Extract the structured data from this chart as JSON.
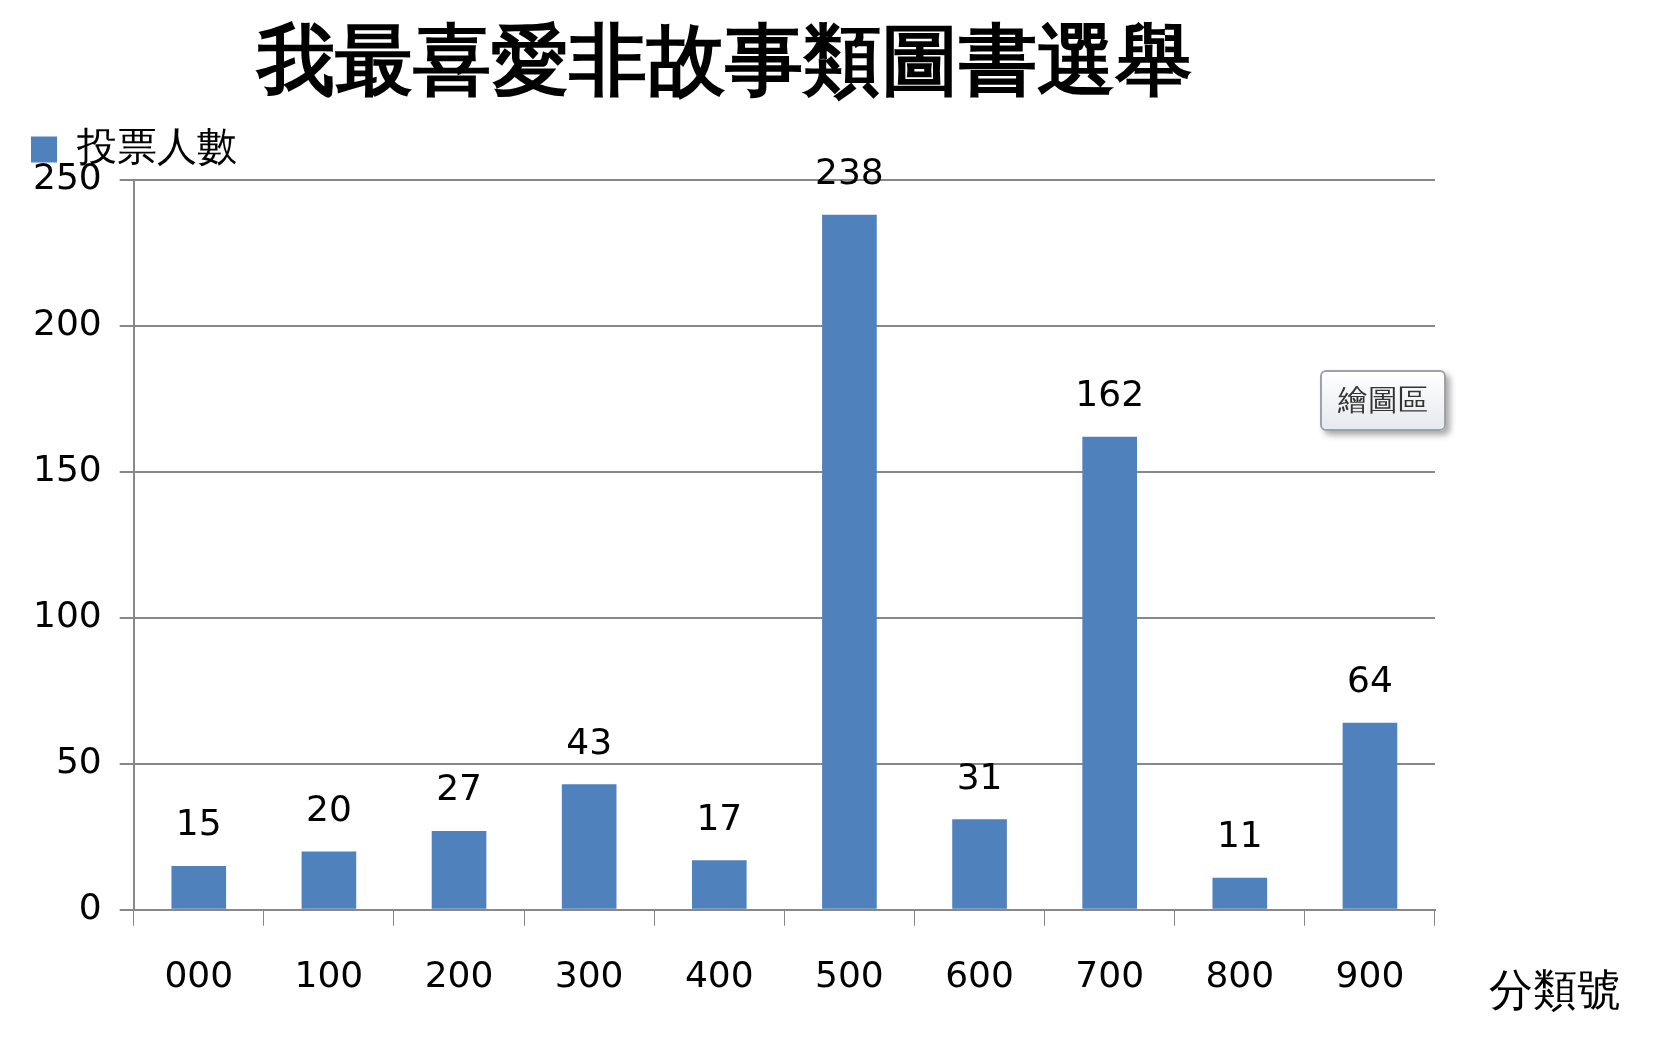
{
  "chart_data": {
    "type": "bar",
    "title": "我最喜愛非故事類圖書選舉",
    "xlabel": "分類號",
    "categories": [
      "000",
      "100",
      "200",
      "300",
      "400",
      "500",
      "600",
      "700",
      "800",
      "900"
    ],
    "series": [
      {
        "name": "投票人數",
        "color": "#4f81bd",
        "values": [
          15,
          20,
          27,
          43,
          17,
          238,
          31,
          162,
          11,
          64
        ]
      }
    ],
    "ylim": [
      0,
      250
    ],
    "yticks": [
      0,
      50,
      100,
      150,
      200,
      250
    ],
    "grid": "y",
    "legend": "top left",
    "data_labels": true,
    "annotations": [
      "繪圖區"
    ]
  }
}
